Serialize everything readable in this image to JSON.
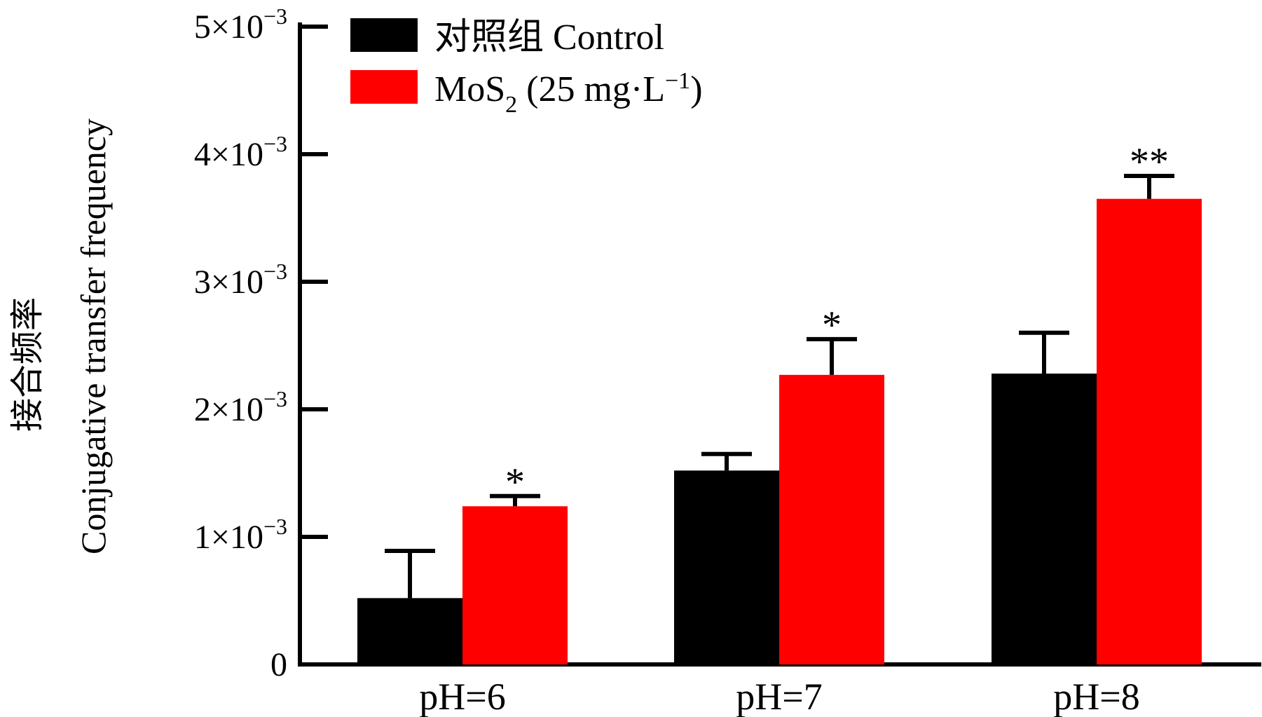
{
  "chart_data": {
    "type": "bar",
    "ylabel_cn": "接合频率",
    "ylabel": "Conjugative transfer frequency",
    "categories": [
      "pH=6",
      "pH=7",
      "pH=8"
    ],
    "ylim": [
      0,
      0.005
    ],
    "yticks": [
      {
        "value": 0,
        "label": "0"
      },
      {
        "value": 0.001,
        "label": "1×10",
        "exp": "−3"
      },
      {
        "value": 0.002,
        "label": "2×10",
        "exp": "−3"
      },
      {
        "value": 0.003,
        "label": "3×10",
        "exp": "−3"
      },
      {
        "value": 0.004,
        "label": "4×10",
        "exp": "−3"
      },
      {
        "value": 0.005,
        "label": "5×10",
        "exp": "−3"
      }
    ],
    "series": [
      {
        "name": "对照组 Control",
        "color": "#000000",
        "values": [
          0.00052,
          0.00152,
          0.00228
        ],
        "errors": [
          0.00037,
          0.00013,
          0.00032
        ],
        "significance": [
          "",
          "",
          ""
        ]
      },
      {
        "name": "MoS2 (25 mg·L−1)",
        "legend_parts": {
          "main": "MoS",
          "sub": "2",
          "mid": " (25 mg·L",
          "sup": "−1",
          "end": ")"
        },
        "color": "#ff0000",
        "values": [
          0.00124,
          0.00227,
          0.00365
        ],
        "errors": [
          8e-05,
          0.00028,
          0.00018
        ],
        "significance": [
          "*",
          "*",
          "**"
        ]
      }
    ],
    "legend_position": "top-left",
    "grid": false
  }
}
